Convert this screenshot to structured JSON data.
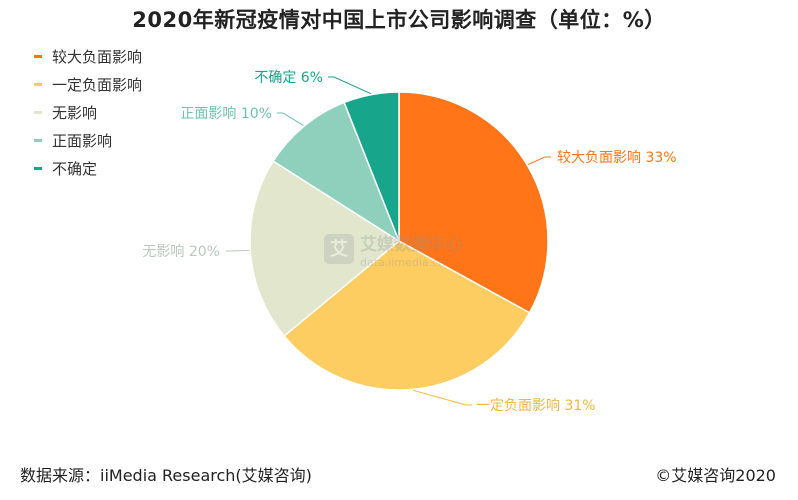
{
  "chart_data": {
    "type": "pie",
    "title": "2020年新冠疫情对中国上市公司影响调查（单位：%）",
    "categories": [
      "较大负面影响",
      "一定负面影响",
      "无影响",
      "正面影响",
      "不确定"
    ],
    "values": [
      33,
      31,
      20,
      10,
      6
    ],
    "unit": "%",
    "colors": [
      "#FF7518",
      "#FDCD61",
      "#E1E6CC",
      "#8ED0BC",
      "#17A58C"
    ],
    "label_colors": [
      "#FF7518",
      "#F3B73B",
      "#B8C8BE",
      "#6EC3AD",
      "#17A58C"
    ],
    "data_labels": [
      "较大负面影响 33%",
      "一定负面影响 31%",
      "无影响 20%",
      "正面影响 10%",
      "不确定 6%"
    ],
    "legend_position": "top-left"
  },
  "watermark": {
    "brand": "艾媒数据中心",
    "url": "data.iimedia.cn",
    "logo_char": "艾"
  },
  "footer": {
    "source": "数据来源：iiMedia Research(艾媒咨询)",
    "copyright": "©艾媒咨询2020"
  }
}
